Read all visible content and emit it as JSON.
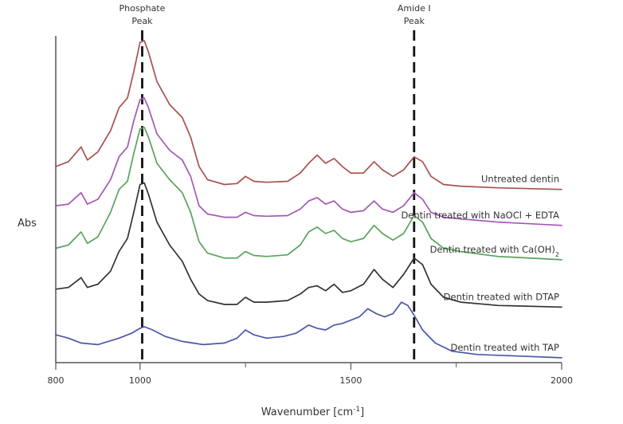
{
  "chart_data": {
    "type": "line",
    "title": "",
    "xlabel": "Wavenumber [cm",
    "xlabel_sup": "-1",
    "xlabel_end": "]",
    "ylabel": "Abs",
    "xlim": [
      800,
      2000
    ],
    "ylim": [
      0,
      10
    ],
    "x_ticks": [
      800,
      1000,
      1500,
      2000
    ],
    "x_minor_ticks": [
      1250,
      1750
    ],
    "grid": false,
    "legend": "labels at right end of each series",
    "reference_lines": [
      {
        "x": 1005,
        "label_line1": "Phosphate",
        "label_line2": "Peak",
        "style": "dashed"
      },
      {
        "x": 1650,
        "label_line1": "Amide I",
        "label_line2": "Peak",
        "style": "dashed"
      }
    ],
    "series": [
      {
        "name": "Untreated dentin",
        "color": "#a8514e",
        "points": [
          [
            800,
            6.0
          ],
          [
            830,
            6.15
          ],
          [
            860,
            6.6
          ],
          [
            875,
            6.2
          ],
          [
            900,
            6.45
          ],
          [
            930,
            7.1
          ],
          [
            950,
            7.8
          ],
          [
            970,
            8.1
          ],
          [
            985,
            8.9
          ],
          [
            1000,
            9.8
          ],
          [
            1010,
            9.85
          ],
          [
            1020,
            9.5
          ],
          [
            1040,
            8.6
          ],
          [
            1070,
            7.9
          ],
          [
            1100,
            7.5
          ],
          [
            1120,
            6.9
          ],
          [
            1140,
            6.0
          ],
          [
            1160,
            5.6
          ],
          [
            1200,
            5.45
          ],
          [
            1230,
            5.48
          ],
          [
            1250,
            5.7
          ],
          [
            1270,
            5.55
          ],
          [
            1300,
            5.52
          ],
          [
            1350,
            5.55
          ],
          [
            1380,
            5.8
          ],
          [
            1400,
            6.1
          ],
          [
            1420,
            6.35
          ],
          [
            1440,
            6.1
          ],
          [
            1460,
            6.25
          ],
          [
            1480,
            6.0
          ],
          [
            1500,
            5.8
          ],
          [
            1530,
            5.8
          ],
          [
            1555,
            6.15
          ],
          [
            1575,
            5.9
          ],
          [
            1600,
            5.7
          ],
          [
            1625,
            5.9
          ],
          [
            1650,
            6.3
          ],
          [
            1670,
            6.15
          ],
          [
            1690,
            5.7
          ],
          [
            1720,
            5.45
          ],
          [
            1760,
            5.4
          ],
          [
            1850,
            5.35
          ],
          [
            2000,
            5.3
          ]
        ]
      },
      {
        "name": "Dentin treated with NaOCl + EDTA",
        "color": "#a457b5",
        "points": [
          [
            800,
            4.8
          ],
          [
            830,
            4.85
          ],
          [
            860,
            5.2
          ],
          [
            875,
            4.85
          ],
          [
            900,
            5.0
          ],
          [
            930,
            5.6
          ],
          [
            950,
            6.3
          ],
          [
            970,
            6.6
          ],
          [
            985,
            7.4
          ],
          [
            1000,
            8.05
          ],
          [
            1010,
            8.1
          ],
          [
            1020,
            7.8
          ],
          [
            1040,
            7.0
          ],
          [
            1070,
            6.5
          ],
          [
            1100,
            6.2
          ],
          [
            1120,
            5.7
          ],
          [
            1140,
            4.8
          ],
          [
            1160,
            4.55
          ],
          [
            1200,
            4.45
          ],
          [
            1230,
            4.45
          ],
          [
            1250,
            4.6
          ],
          [
            1270,
            4.5
          ],
          [
            1300,
            4.48
          ],
          [
            1350,
            4.5
          ],
          [
            1380,
            4.7
          ],
          [
            1400,
            4.95
          ],
          [
            1420,
            5.05
          ],
          [
            1440,
            4.85
          ],
          [
            1460,
            4.95
          ],
          [
            1480,
            4.7
          ],
          [
            1500,
            4.6
          ],
          [
            1530,
            4.65
          ],
          [
            1555,
            4.95
          ],
          [
            1575,
            4.7
          ],
          [
            1600,
            4.6
          ],
          [
            1625,
            4.8
          ],
          [
            1650,
            5.2
          ],
          [
            1670,
            5.0
          ],
          [
            1690,
            4.6
          ],
          [
            1720,
            4.45
          ],
          [
            1760,
            4.4
          ],
          [
            1850,
            4.3
          ],
          [
            2000,
            4.2
          ]
        ]
      },
      {
        "name": "Dentin treated with Ca(OH)",
        "name_sub": "2",
        "color": "#58a35c",
        "points": [
          [
            800,
            3.5
          ],
          [
            830,
            3.6
          ],
          [
            860,
            4.0
          ],
          [
            875,
            3.65
          ],
          [
            900,
            3.85
          ],
          [
            930,
            4.6
          ],
          [
            950,
            5.3
          ],
          [
            970,
            5.55
          ],
          [
            985,
            6.4
          ],
          [
            1000,
            7.15
          ],
          [
            1010,
            7.2
          ],
          [
            1020,
            6.9
          ],
          [
            1040,
            6.1
          ],
          [
            1070,
            5.6
          ],
          [
            1100,
            5.2
          ],
          [
            1120,
            4.6
          ],
          [
            1140,
            3.7
          ],
          [
            1160,
            3.35
          ],
          [
            1200,
            3.2
          ],
          [
            1230,
            3.2
          ],
          [
            1250,
            3.4
          ],
          [
            1270,
            3.28
          ],
          [
            1300,
            3.25
          ],
          [
            1350,
            3.3
          ],
          [
            1380,
            3.6
          ],
          [
            1400,
            4.0
          ],
          [
            1420,
            4.15
          ],
          [
            1440,
            3.95
          ],
          [
            1460,
            4.05
          ],
          [
            1480,
            3.8
          ],
          [
            1500,
            3.7
          ],
          [
            1530,
            3.8
          ],
          [
            1555,
            4.2
          ],
          [
            1575,
            3.95
          ],
          [
            1600,
            3.75
          ],
          [
            1625,
            3.95
          ],
          [
            1650,
            4.5
          ],
          [
            1670,
            4.3
          ],
          [
            1690,
            3.8
          ],
          [
            1720,
            3.5
          ],
          [
            1760,
            3.4
          ],
          [
            1850,
            3.25
          ],
          [
            2000,
            3.15
          ]
        ]
      },
      {
        "name": "Dentin treated with DTAP",
        "color": "#333333",
        "points": [
          [
            800,
            2.25
          ],
          [
            830,
            2.3
          ],
          [
            860,
            2.6
          ],
          [
            875,
            2.3
          ],
          [
            900,
            2.4
          ],
          [
            930,
            2.8
          ],
          [
            950,
            3.4
          ],
          [
            970,
            3.8
          ],
          [
            985,
            4.6
          ],
          [
            1000,
            5.45
          ],
          [
            1010,
            5.5
          ],
          [
            1020,
            5.15
          ],
          [
            1040,
            4.3
          ],
          [
            1070,
            3.6
          ],
          [
            1100,
            3.1
          ],
          [
            1120,
            2.55
          ],
          [
            1140,
            2.1
          ],
          [
            1160,
            1.9
          ],
          [
            1200,
            1.78
          ],
          [
            1230,
            1.78
          ],
          [
            1250,
            2.0
          ],
          [
            1270,
            1.85
          ],
          [
            1300,
            1.85
          ],
          [
            1350,
            1.9
          ],
          [
            1380,
            2.1
          ],
          [
            1400,
            2.3
          ],
          [
            1420,
            2.35
          ],
          [
            1440,
            2.2
          ],
          [
            1460,
            2.4
          ],
          [
            1480,
            2.15
          ],
          [
            1500,
            2.2
          ],
          [
            1530,
            2.4
          ],
          [
            1555,
            2.85
          ],
          [
            1575,
            2.55
          ],
          [
            1600,
            2.3
          ],
          [
            1625,
            2.7
          ],
          [
            1650,
            3.2
          ],
          [
            1670,
            3.0
          ],
          [
            1690,
            2.4
          ],
          [
            1720,
            2.0
          ],
          [
            1760,
            1.85
          ],
          [
            1850,
            1.75
          ],
          [
            2000,
            1.7
          ]
        ]
      },
      {
        "name": "Dentin treated with TAP",
        "color": "#4c57a8",
        "points": [
          [
            800,
            0.85
          ],
          [
            830,
            0.75
          ],
          [
            860,
            0.6
          ],
          [
            900,
            0.55
          ],
          [
            950,
            0.75
          ],
          [
            980,
            0.9
          ],
          [
            1000,
            1.05
          ],
          [
            1010,
            1.1
          ],
          [
            1030,
            1.0
          ],
          [
            1060,
            0.8
          ],
          [
            1100,
            0.65
          ],
          [
            1150,
            0.55
          ],
          [
            1200,
            0.6
          ],
          [
            1230,
            0.75
          ],
          [
            1250,
            1.0
          ],
          [
            1270,
            0.85
          ],
          [
            1300,
            0.75
          ],
          [
            1340,
            0.8
          ],
          [
            1370,
            0.9
          ],
          [
            1400,
            1.15
          ],
          [
            1420,
            1.05
          ],
          [
            1440,
            1.0
          ],
          [
            1460,
            1.15
          ],
          [
            1480,
            1.2
          ],
          [
            1500,
            1.3
          ],
          [
            1520,
            1.4
          ],
          [
            1540,
            1.65
          ],
          [
            1560,
            1.5
          ],
          [
            1580,
            1.4
          ],
          [
            1600,
            1.5
          ],
          [
            1620,
            1.85
          ],
          [
            1635,
            1.75
          ],
          [
            1650,
            1.45
          ],
          [
            1670,
            1.0
          ],
          [
            1700,
            0.6
          ],
          [
            1740,
            0.35
          ],
          [
            1800,
            0.25
          ],
          [
            1900,
            0.2
          ],
          [
            2000,
            0.15
          ]
        ]
      }
    ]
  }
}
